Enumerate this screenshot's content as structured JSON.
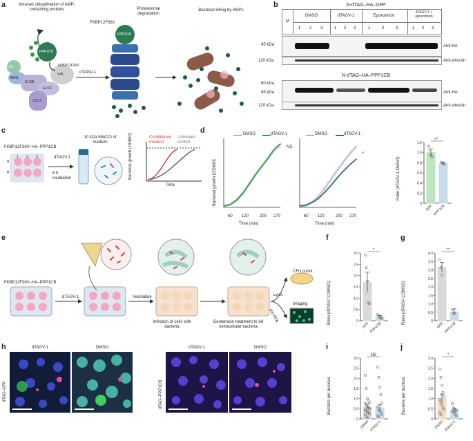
{
  "panels": {
    "a": "a",
    "b": "b",
    "c": "c",
    "d": "d",
    "e": "e",
    "f": "f",
    "g": "g",
    "h": "h",
    "i": "i",
    "j": "j"
  },
  "a": {
    "label_ubiq": "Induced ubiquitination of AMP-containing proteins",
    "label_fkbp_top": "FKBP12F36V",
    "label_proteasomal": "Proteasomal degradation",
    "label_killing": "Bacterial killing by AMPs",
    "label_e2": "E2",
    "label_rbx1": "RBX1",
    "label_ppp1cb": "PPP1CB",
    "label_ppp1cb_2": "PPP1CB",
    "label_fkbp_side": "FKBP12F36V",
    "label_vhl": "VHL",
    "label_elob": "ELOB",
    "label_eloc": "ELOC",
    "label_cul2": "CUL2",
    "label_arrow": "dTAGV-1"
  },
  "b": {
    "title1": "N-dTAG–HA–GFP",
    "title2": "N-dTAG–HA–PPP1CB",
    "col_m": "M",
    "groups": [
      "DMSO",
      "dTAGV-1",
      "Epoxomicin",
      "dTAGV-1 + epoxomicin"
    ],
    "lanes": [
      "1",
      "2",
      "3",
      "1",
      "2",
      "3",
      "1",
      "2",
      "3",
      "1",
      "2",
      "3"
    ],
    "kda": [
      "45 kDa",
      "120 kDa",
      "60 kDa",
      "45 kDa",
      "120 kDa"
    ],
    "antibodies": [
      "Anti-HA",
      "Anti-vinculin",
      "Anti-HA",
      "Anti-vinculin"
    ]
  },
  "c": {
    "construct": "FKBP12F36V–HA–PPP1CB",
    "mwco": "10 kDa MWCO of medium",
    "treat": "dTAGV-1",
    "incubation": "6 h incubation",
    "rows": [
      "A",
      "B"
    ],
    "cols": [
      "1",
      "2",
      "3"
    ],
    "conditioned": "Conditioned medium",
    "untreated": "Untreated control",
    "ylabel": "Bacterial growth (OD600)",
    "xlabel": "Time"
  },
  "d": {
    "legend_dmso": "DMSO",
    "legend_dtag": "dTAGV-1",
    "ns": "NS",
    "star": "*",
    "ylabel": "Bacterial growth (OD600)",
    "xlabel": "Time (min)",
    "xticks": [
      "60",
      "120",
      "200",
      "270"
    ],
    "bar_ylabel": "Ratio (dTAGV-1:DMSO)",
    "bar_yticks": [
      "0",
      "0.2",
      "0.4",
      "0.6",
      "0.8",
      "1.0",
      "1.2"
    ],
    "bar_cats": [
      "GFP",
      "PPP1CB"
    ]
  },
  "e": {
    "construct": "FKBP12F36V–HA–PPP1CB",
    "treat": "dTAGV-1",
    "incubation": "Incubation",
    "infection": "Infection of cells with bacteria",
    "gentamicin": "Gentamicin treatment to kill extracellular bacteria",
    "lysis": "Lysis",
    "pfa": "4% PFA",
    "cfu": "CFU count",
    "imaging": "Imaging"
  },
  "f": {
    "ylabel": "Ratio (dTAGV-1:DMSO)",
    "yticks": [
      "0",
      "0.5",
      "1.0",
      "1.5",
      "2.0",
      "2.5",
      "3.0"
    ],
    "cats": [
      "GFP",
      "PPP1CB"
    ],
    "star": "*"
  },
  "g": {
    "ylabel": "Ratio (dTAGV-1:DMSO)",
    "yticks": [
      "0",
      "0.5",
      "1.0",
      "1.5",
      "2.0",
      "2.5",
      "3.0",
      "3.5",
      "4.0"
    ],
    "cats": [
      "GFP",
      "PPP1CB"
    ],
    "star": "**"
  },
  "h": {
    "top_labels": [
      "dTAGV-1",
      "DMSO",
      "dTAGV-1",
      "DMSO"
    ],
    "side_labels": [
      "dTAG–GFP",
      "dTAG–PPP1CB"
    ]
  },
  "i": {
    "ylabel": "Bacteria per nucleus",
    "yticks": [
      "0",
      "0.5",
      "1.0",
      "1.5",
      "2.0",
      "2.5",
      "3.0"
    ],
    "cats": [
      "DMSO",
      "dTAGV-1"
    ],
    "ns": "NS"
  },
  "j": {
    "ylabel": "Bacteria per nucleus",
    "yticks": [
      "0",
      "0.5",
      "1.0",
      "1.5",
      "2.0",
      "2.5",
      "3.0"
    ],
    "cats": [
      "DMSO",
      "dTAGV-1"
    ],
    "star": "*"
  },
  "colors": {
    "green": "#3a9a44",
    "teal": "#2e6b84",
    "gray": "#b5b5b5",
    "pink": "#f2a7c4",
    "blue_nuclei": "#4d3fc9",
    "bar_light_green": "#bfe2c3",
    "bar_light_blue": "#c9dcec"
  },
  "chart_data": [
    {
      "panel": "d-left",
      "type": "line",
      "xlabel": "Time (min)",
      "ylabel": "Bacterial growth (OD600)",
      "x": [
        0,
        30,
        60,
        90,
        120,
        150,
        180,
        210,
        240,
        270
      ],
      "series": [
        {
          "name": "DMSO",
          "values": [
            0.02,
            0.04,
            0.1,
            0.2,
            0.33,
            0.46,
            0.58,
            0.7,
            0.82,
            0.9
          ]
        },
        {
          "name": "dTAGV-1",
          "values": [
            0.02,
            0.04,
            0.1,
            0.2,
            0.33,
            0.47,
            0.59,
            0.71,
            0.84,
            0.92
          ]
        }
      ],
      "annotation": "NS"
    },
    {
      "panel": "d-middle",
      "type": "line",
      "xlabel": "Time (min)",
      "x": [
        0,
        30,
        60,
        90,
        120,
        150,
        180,
        210,
        240,
        270
      ],
      "series": [
        {
          "name": "DMSO",
          "values": [
            0.02,
            0.03,
            0.08,
            0.16,
            0.28,
            0.41,
            0.54,
            0.66,
            0.78,
            0.88
          ]
        },
        {
          "name": "dTAGV-1",
          "values": [
            0.02,
            0.03,
            0.07,
            0.13,
            0.22,
            0.32,
            0.43,
            0.53,
            0.62,
            0.7
          ]
        }
      ],
      "annotation": "*"
    },
    {
      "panel": "d-right",
      "type": "bar",
      "ylabel": "Ratio (dTAGV-1:DMSO)",
      "categories": [
        "GFP",
        "PPP1CB"
      ],
      "values": [
        1.0,
        0.79
      ],
      "errors": [
        0.07,
        0.02
      ],
      "points": [
        [
          1.12,
          1.05,
          0.95,
          0.91
        ],
        [
          0.81,
          0.79,
          0.78,
          0.77
        ]
      ],
      "ylim": [
        0,
        1.2
      ],
      "annotation": "*"
    },
    {
      "panel": "f",
      "type": "bar",
      "ylabel": "Ratio (dTAGV-1:DMSO)",
      "categories": [
        "GFP",
        "PPP1CB"
      ],
      "values": [
        1.7,
        0.18
      ],
      "errors": [
        0.45,
        0.05
      ],
      "points": [
        [
          2.9,
          2.35,
          1.75,
          0.8,
          0.75
        ],
        [
          0.28,
          0.2,
          0.15,
          0.12,
          0.1
        ]
      ],
      "ylim": [
        0,
        3.0
      ],
      "annotation": "*"
    },
    {
      "panel": "g",
      "type": "bar",
      "ylabel": "Ratio (dTAGV-1:DMSO)",
      "categories": [
        "GFP",
        "PPP1CB"
      ],
      "values": [
        3.15,
        0.52
      ],
      "errors": [
        0.3,
        0.18
      ],
      "points": [
        [
          3.6,
          3.15,
          2.7
        ],
        [
          0.65,
          0.45,
          0.42
        ]
      ],
      "ylim": [
        0,
        4.0
      ],
      "annotation": "**"
    },
    {
      "panel": "i",
      "type": "bar",
      "ylabel": "Bacteria per nucleus",
      "categories": [
        "DMSO",
        "dTAGV-1"
      ],
      "values": [
        0.6,
        0.55
      ],
      "errors": [
        0.12,
        0.15
      ],
      "points": [
        [
          2.15,
          1.5,
          1.0,
          0.9,
          0.8,
          0.75,
          0.7,
          0.6,
          0.55,
          0.5,
          0.45,
          0.4,
          0.35,
          0.3,
          0.25,
          0.2,
          0.1,
          0.05
        ],
        [
          2.55,
          2.05,
          1.55,
          1.2,
          0.8,
          0.6,
          0.45,
          0.4,
          0.3,
          0.2,
          0.15,
          0.1
        ]
      ],
      "ylim": [
        0,
        3.0
      ],
      "annotation": "NS"
    },
    {
      "panel": "j",
      "type": "bar",
      "ylabel": "Bacteria per nucleus",
      "categories": [
        "DMSO",
        "dTAGV-1"
      ],
      "values": [
        1.0,
        0.42
      ],
      "errors": [
        0.22,
        0.08
      ],
      "points": [
        [
          2.45,
          2.05,
          1.65,
          1.3,
          1.1,
          0.95,
          0.8,
          0.7,
          0.55,
          0.45,
          0.3,
          0.2
        ],
        [
          0.75,
          0.55,
          0.5,
          0.45,
          0.42,
          0.4,
          0.35,
          0.3,
          0.2,
          0.15
        ]
      ],
      "ylim": [
        0,
        3.0
      ],
      "annotation": "*"
    }
  ]
}
